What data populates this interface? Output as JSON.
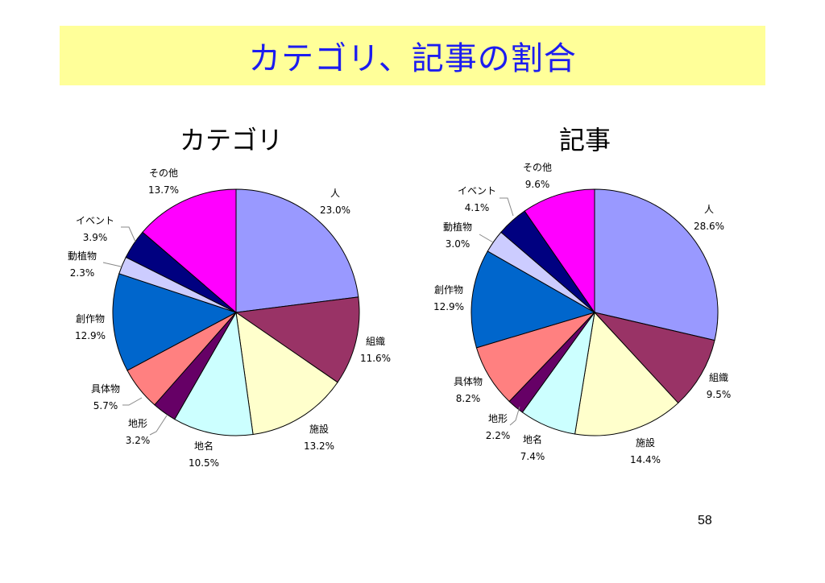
{
  "slide": {
    "title": "カテゴリ、記事の割合",
    "title_bg": "#ffff99",
    "title_color": "#1c1cf0",
    "page_number": "58"
  },
  "chart_data": [
    {
      "type": "pie",
      "title": "カテゴリ",
      "start": "12-o'clock",
      "direction": "clockwise",
      "slices": [
        {
          "label": "人",
          "value": 23.0,
          "display": "23.0%",
          "color": "#9999ff"
        },
        {
          "label": "組織",
          "value": 11.6,
          "display": "11.6%",
          "color": "#993366"
        },
        {
          "label": "施設",
          "value": 13.2,
          "display": "13.2%",
          "color": "#ffffcc"
        },
        {
          "label": "地名",
          "value": 10.5,
          "display": "10.5%",
          "color": "#ccffff"
        },
        {
          "label": "地形",
          "value": 3.2,
          "display": "3.2%",
          "color": "#660066"
        },
        {
          "label": "具体物",
          "value": 5.7,
          "display": "5.7%",
          "color": "#ff8080"
        },
        {
          "label": "創作物",
          "value": 12.9,
          "display": "12.9%",
          "color": "#0066cc"
        },
        {
          "label": "動植物",
          "value": 2.3,
          "display": "2.3%",
          "color": "#ccccff"
        },
        {
          "label": "イベント",
          "value": 3.9,
          "display": "3.9%",
          "color": "#000080"
        },
        {
          "label": "その他",
          "value": 13.7,
          "display": "13.7%",
          "color": "#ff00ff"
        }
      ]
    },
    {
      "type": "pie",
      "title": "記事",
      "start": "12-o'clock",
      "direction": "clockwise",
      "slices": [
        {
          "label": "人",
          "value": 28.6,
          "display": "28.6%",
          "color": "#9999ff"
        },
        {
          "label": "組織",
          "value": 9.5,
          "display": "9.5%",
          "color": "#993366"
        },
        {
          "label": "施設",
          "value": 14.4,
          "display": "14.4%",
          "color": "#ffffcc"
        },
        {
          "label": "地名",
          "value": 7.4,
          "display": "7.4%",
          "color": "#ccffff"
        },
        {
          "label": "地形",
          "value": 2.2,
          "display": "2.2%",
          "color": "#660066"
        },
        {
          "label": "具体物",
          "value": 8.2,
          "display": "8.2%",
          "color": "#ff8080"
        },
        {
          "label": "創作物",
          "value": 12.9,
          "display": "12.9%",
          "color": "#0066cc"
        },
        {
          "label": "動植物",
          "value": 3.0,
          "display": "3.0%",
          "color": "#ccccff"
        },
        {
          "label": "イベント",
          "value": 4.1,
          "display": "4.1%",
          "color": "#000080"
        },
        {
          "label": "その他",
          "value": 9.6,
          "display": "9.6%",
          "color": "#ff00ff"
        }
      ]
    }
  ]
}
